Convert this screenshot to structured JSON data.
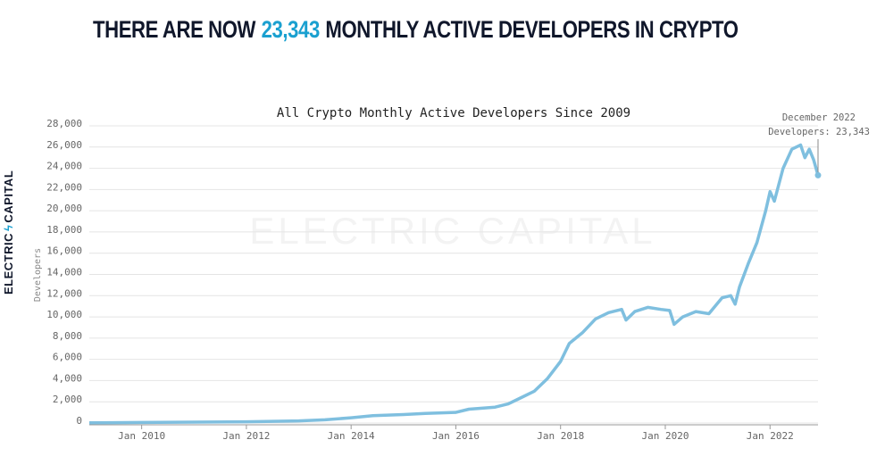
{
  "chart_data": {
    "type": "line",
    "headline_prefix": "THERE ARE NOW",
    "headline_highlight": "23,343",
    "headline_suffix": "MONTHLY ACTIVE DEVELOPERS IN CRYPTO",
    "title": "All Crypto Monthly Active Developers Since 2009",
    "y_label": "Developers",
    "watermark": "ELECTRIC CAPITAL",
    "logo": [
      "ELECTRIC",
      "CAPITAL"
    ],
    "annotation": [
      "December 2022",
      "Developers: 23,343"
    ],
    "x": [
      "2009-01",
      "2010-01",
      "2011-01",
      "2012-01",
      "2013-01",
      "2013-07",
      "2014-01",
      "2014-06",
      "2015-01",
      "2015-06",
      "2016-01",
      "2016-04",
      "2016-10",
      "2017-01",
      "2017-04",
      "2017-07",
      "2017-10",
      "2018-01",
      "2018-03",
      "2018-06",
      "2018-09",
      "2018-12",
      "2019-03",
      "2019-04",
      "2019-06",
      "2019-09",
      "2019-12",
      "2020-02",
      "2020-03",
      "2020-05",
      "2020-08",
      "2020-11",
      "2021-02",
      "2021-04",
      "2021-05",
      "2021-06",
      "2021-08",
      "2021-10",
      "2021-12",
      "2022-01",
      "2022-02",
      "2022-04",
      "2022-06",
      "2022-08",
      "2022-09",
      "2022-10",
      "2022-11",
      "2022-12"
    ],
    "series": [
      {
        "name": "Developers",
        "color": "#7fbfdf",
        "values": [
          20,
          50,
          80,
          120,
          200,
          300,
          500,
          700,
          800,
          900,
          1000,
          1300,
          1500,
          1800,
          2400,
          3000,
          4200,
          5800,
          7500,
          8500,
          9800,
          10400,
          10700,
          9700,
          10500,
          10900,
          10700,
          10600,
          9300,
          10000,
          10500,
          10300,
          11800,
          12000,
          11200,
          12800,
          15000,
          17000,
          20000,
          21800,
          20900,
          24000,
          25800,
          26200,
          25000,
          25800,
          24800,
          23343
        ]
      }
    ],
    "xlim": [
      "2009-01",
      "2022-12"
    ],
    "xticks": [
      {
        "value": "2010-01",
        "label": "Jan 2010"
      },
      {
        "value": "2012-01",
        "label": "Jan 2012"
      },
      {
        "value": "2014-01",
        "label": "Jan 2014"
      },
      {
        "value": "2016-01",
        "label": "Jan 2016"
      },
      {
        "value": "2018-01",
        "label": "Jan 2018"
      },
      {
        "value": "2020-01",
        "label": "Jan 2020"
      },
      {
        "value": "2022-01",
        "label": "Jan 2022"
      }
    ],
    "ylim": [
      0,
      28000
    ],
    "yticks": [
      0,
      {
        "value": 2000,
        "label": "2,000"
      },
      {
        "value": 4000,
        "label": "4,000"
      },
      {
        "value": 6000,
        "label": "6,000"
      },
      {
        "value": 8000,
        "label": "8,000"
      },
      {
        "value": 10000,
        "label": "10,000"
      },
      {
        "value": 12000,
        "label": "12,000"
      },
      {
        "value": 14000,
        "label": "14,000"
      },
      {
        "value": 16000,
        "label": "16,000"
      },
      {
        "value": 18000,
        "label": "18,000"
      },
      {
        "value": 20000,
        "label": "20,000"
      },
      {
        "value": 22000,
        "label": "22,000"
      },
      {
        "value": 24000,
        "label": "24,000"
      },
      {
        "value": 26000,
        "label": "26,000"
      },
      {
        "value": 28000,
        "label": "28,000"
      }
    ],
    "grid": true
  }
}
